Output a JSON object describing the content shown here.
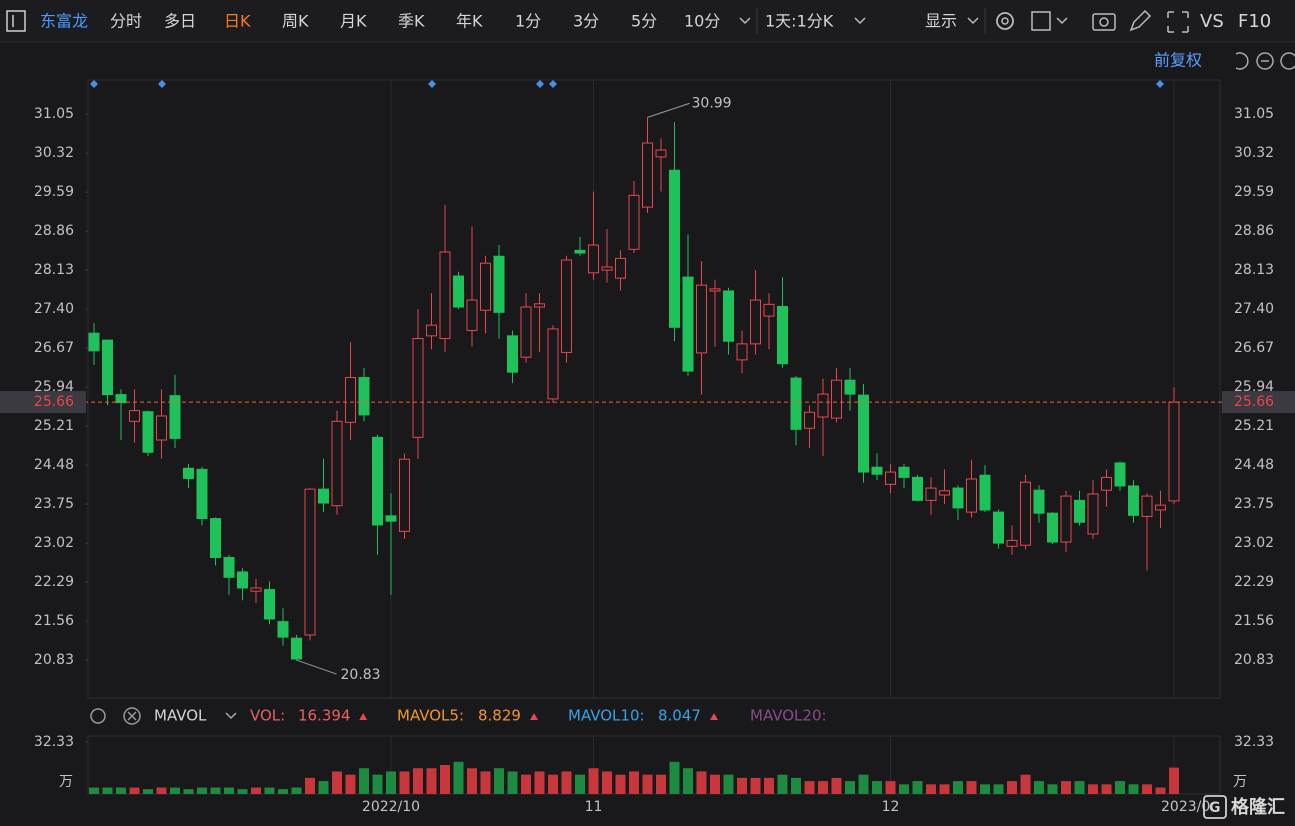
{
  "toolbar": {
    "stock": "东富龙",
    "periods": [
      "分时",
      "多日",
      "日K",
      "周K",
      "月K",
      "季K",
      "年K",
      "1分",
      "3分",
      "5分",
      "10分"
    ],
    "interval": "1天:1分K",
    "display": "显示",
    "vs": "VS",
    "f10": "F10",
    "adjust": "前复权"
  },
  "chart_data": {
    "type": "candlestick",
    "categories": [
      null,
      null,
      null,
      null,
      null,
      null,
      null,
      null,
      null,
      null,
      null,
      null,
      null,
      null,
      null,
      null,
      null,
      null,
      null,
      null,
      null,
      null,
      "2022/10",
      null,
      null,
      null,
      null,
      null,
      null,
      null,
      null,
      null,
      null,
      null,
      null,
      null,
      null,
      "11",
      null,
      null,
      null,
      null,
      null,
      null,
      null,
      null,
      null,
      null,
      null,
      null,
      null,
      null,
      null,
      null,
      null,
      null,
      null,
      null,
      null,
      "12",
      null,
      null,
      null,
      null,
      null,
      null,
      null,
      null,
      null,
      null,
      null,
      null,
      null,
      null,
      null,
      null,
      null,
      null,
      null,
      null,
      "2023/0"
    ],
    "open": [
      26.95,
      26.82,
      25.8,
      25.3,
      25.48,
      24.95,
      25.78,
      24.42,
      24.4,
      23.48,
      22.75,
      22.48,
      22.12,
      22.15,
      21.55,
      21.24,
      21.3,
      24.03,
      23.72,
      25.28,
      26.12,
      25.0,
      23.53,
      23.24,
      25.0,
      26.9,
      26.85,
      28.02,
      27.0,
      27.38,
      28.39,
      26.9,
      26.5,
      27.44,
      25.72,
      26.59,
      28.5,
      28.08,
      28.13,
      27.98,
      28.52,
      29.31,
      30.25,
      30.0,
      28.0,
      26.58,
      27.74,
      27.74,
      26.45,
      26.75,
      27.27,
      27.45,
      26.11,
      25.17,
      25.38,
      25.36,
      26.07,
      25.79,
      24.44,
      24.12,
      24.44,
      24.25,
      23.82,
      23.92,
      24.05,
      23.6,
      24.29,
      23.6,
      22.96,
      22.98,
      24.01,
      23.58,
      23.04,
      23.82,
      23.19,
      24.01,
      24.52,
      24.09,
      23.52,
      23.64,
      23.81
    ],
    "high": [
      27.14,
      26.82,
      25.9,
      25.9,
      25.5,
      25.9,
      26.17,
      24.5,
      24.45,
      23.5,
      22.8,
      22.55,
      22.35,
      22.3,
      21.8,
      21.3,
      24.05,
      24.6,
      25.5,
      26.78,
      26.3,
      25.05,
      23.95,
      24.7,
      27.4,
      27.7,
      29.35,
      28.1,
      28.95,
      28.4,
      28.6,
      27.0,
      27.7,
      27.7,
      27.1,
      28.4,
      28.75,
      29.6,
      28.9,
      28.5,
      29.8,
      30.99,
      30.6,
      30.9,
      28.8,
      28.3,
      27.95,
      27.8,
      27.0,
      28.13,
      27.7,
      28.0,
      26.15,
      25.6,
      26.1,
      26.3,
      26.3,
      26.0,
      24.7,
      24.5,
      24.5,
      24.3,
      24.25,
      24.4,
      24.1,
      24.58,
      24.48,
      23.65,
      23.35,
      24.3,
      24.1,
      23.6,
      24.0,
      24.0,
      24.2,
      24.4,
      24.55,
      24.2,
      23.95,
      24.0,
      25.94
    ],
    "low": [
      26.36,
      25.6,
      24.95,
      24.9,
      24.65,
      24.6,
      24.8,
      24.05,
      23.35,
      22.6,
      22.05,
      21.95,
      21.9,
      21.5,
      21.1,
      20.83,
      21.2,
      23.6,
      23.55,
      24.95,
      25.3,
      22.8,
      22.05,
      23.1,
      24.6,
      26.65,
      26.6,
      27.4,
      26.7,
      26.95,
      26.85,
      26.02,
      26.4,
      26.6,
      25.65,
      26.4,
      28.4,
      27.95,
      27.9,
      27.75,
      28.45,
      29.2,
      29.6,
      26.8,
      26.15,
      25.8,
      26.7,
      26.55,
      26.2,
      26.55,
      26.65,
      26.3,
      24.85,
      24.8,
      24.65,
      25.28,
      25.5,
      24.15,
      24.2,
      23.95,
      24.05,
      23.8,
      23.55,
      23.75,
      23.45,
      23.5,
      23.6,
      22.92,
      22.8,
      22.9,
      23.4,
      23.0,
      22.85,
      23.35,
      23.1,
      23.7,
      24.0,
      23.4,
      22.51,
      23.3,
      23.75
    ],
    "close": [
      26.62,
      25.8,
      25.65,
      25.5,
      24.72,
      25.4,
      24.98,
      24.23,
      23.48,
      22.75,
      22.38,
      22.18,
      22.18,
      21.6,
      21.26,
      20.85,
      24.03,
      23.77,
      25.3,
      26.12,
      25.42,
      23.36,
      23.43,
      24.59,
      26.85,
      27.1,
      28.47,
      27.44,
      27.57,
      28.26,
      27.34,
      26.22,
      27.44,
      27.5,
      27.03,
      28.32,
      28.45,
      28.6,
      28.19,
      28.35,
      29.53,
      30.51,
      30.38,
      27.06,
      26.24,
      27.85,
      27.78,
      26.8,
      26.75,
      27.57,
      27.49,
      26.38,
      25.15,
      25.47,
      25.81,
      26.07,
      25.81,
      24.35,
      24.31,
      24.35,
      24.25,
      23.82,
      24.05,
      24.0,
      23.68,
      24.22,
      23.64,
      23.02,
      23.07,
      24.16,
      23.58,
      23.04,
      23.9,
      23.41,
      23.94,
      24.25,
      24.09,
      23.54,
      23.9,
      23.73,
      25.66
    ],
    "ylim": [
      20.12,
      31.69
    ],
    "yticks": [
      31.05,
      30.32,
      29.59,
      28.86,
      28.13,
      {
        "value": 27.4,
        "label": "27.40"
      },
      26.67,
      25.94,
      25.21,
      24.48,
      23.75,
      23.02,
      22.29,
      21.56,
      20.83
    ],
    "up_color": "#e8474c",
    "down_color": "#1fc15a",
    "last_price_color": "#e8623a",
    "grid": "x",
    "volume": {
      "indicator": "MAVOL",
      "values": [
        4,
        4,
        4,
        4,
        3,
        4,
        4,
        3,
        4,
        4,
        4,
        3,
        4,
        4,
        3,
        4,
        10,
        8,
        14,
        12,
        16,
        12,
        14,
        14,
        16,
        16,
        18,
        20,
        16,
        14,
        16,
        14,
        12,
        14,
        12,
        14,
        12,
        16,
        14,
        12,
        14,
        12,
        12,
        20,
        16,
        14,
        12,
        12,
        10,
        10,
        10,
        12,
        10,
        8,
        8,
        10,
        8,
        12,
        8,
        8,
        6,
        8,
        6,
        6,
        8,
        8,
        6,
        6,
        8,
        12,
        8,
        6,
        8,
        8,
        6,
        6,
        8,
        6,
        6,
        4,
        16.394
      ],
      "ylim": [
        0,
        36
      ],
      "yticks": [
        32.33
      ],
      "unit": "万",
      "up_color": "#c8373c",
      "down_color": "#1d8c41",
      "legend": [
        {
          "name": "VOL:",
          "color": "#e86060"
        },
        {
          "name": "MAVOL5:",
          "value": 8.829,
          "color": "#f0962c"
        },
        {
          "name": "MAVOL10:",
          "value": 8.047,
          "color": "#33a3e6"
        },
        {
          "name": "MAVOL20:",
          "color": "#8a4a8a"
        }
      ]
    }
  }
}
